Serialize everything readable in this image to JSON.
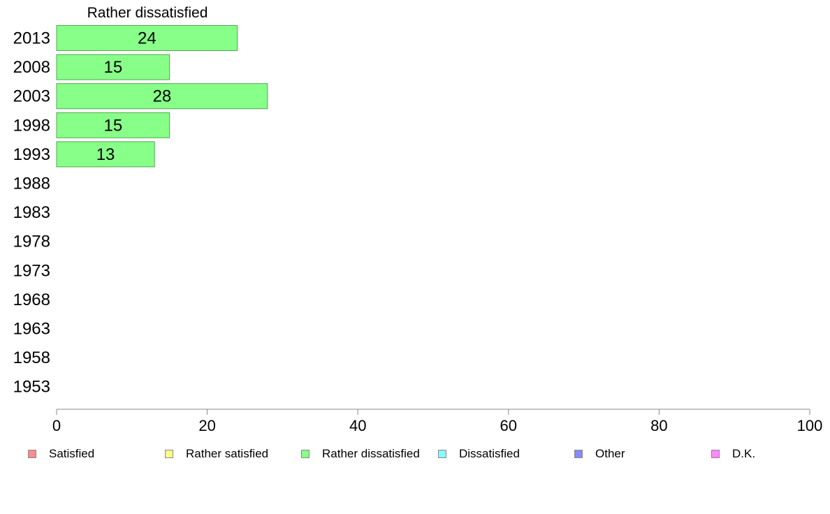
{
  "chart_data": {
    "type": "bar",
    "orientation": "horizontal",
    "title": "Rather dissatisfied",
    "categories": [
      "2013",
      "2008",
      "2003",
      "1998",
      "1993",
      "1988",
      "1983",
      "1978",
      "1973",
      "1968",
      "1963",
      "1958",
      "1953"
    ],
    "series": [
      {
        "name": "Rather dissatisfied",
        "values": [
          24,
          15,
          28,
          15,
          13,
          null,
          null,
          null,
          null,
          null,
          null,
          null,
          null
        ],
        "labels": [
          "24",
          "15",
          "28",
          "15",
          "13",
          "",
          "",
          "",
          "",
          "",
          "",
          "",
          ""
        ]
      }
    ],
    "xlim": [
      0,
      100
    ],
    "xticks": [
      0,
      20,
      40,
      60,
      80,
      100
    ],
    "xtick_labels": [
      "0",
      "20",
      "40",
      "60",
      "80",
      "100"
    ],
    "grid": false,
    "legend_position": "bottom",
    "legend": [
      {
        "label": "Satisfied",
        "color": "#ff8c8c"
      },
      {
        "label": "Rather satisfied",
        "color": "#ffff88"
      },
      {
        "label": "Rather dissatisfied",
        "color": "#88ff88"
      },
      {
        "label": "Dissatisfied",
        "color": "#88ffff"
      },
      {
        "label": "Other",
        "color": "#8888ff"
      },
      {
        "label": "D.K.",
        "color": "#ff88ff"
      }
    ],
    "bar_color": "#88ff88",
    "bar_edge_color": "#4fa84f",
    "axis_color": "#888888"
  }
}
